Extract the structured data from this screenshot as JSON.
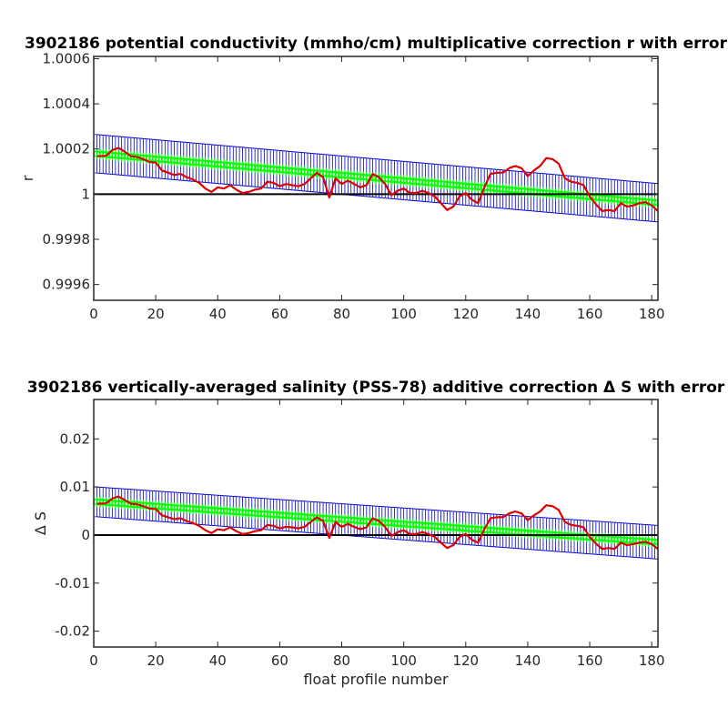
{
  "chart_data": [
    {
      "type": "line",
      "title": "3902186 potential conductivity (mmho/cm) multiplicative correction r with error",
      "xlabel": "",
      "ylabel": "r",
      "xlim": [
        0,
        182
      ],
      "ylim": [
        0.99953,
        1.00061
      ],
      "xticks": [
        0,
        20,
        40,
        60,
        80,
        100,
        120,
        140,
        160,
        180
      ],
      "xtick_labels": [
        "0",
        "20",
        "40",
        "60",
        "80",
        "100",
        "120",
        "140",
        "160",
        "180"
      ],
      "yticks": [
        0.9996,
        0.9998,
        1.0,
        1.0002,
        1.0004,
        1.0006
      ],
      "ytick_labels": [
        "0.9996",
        "0.9998",
        "1",
        "1.0002",
        "1.0004",
        "1.0006"
      ],
      "reference_line": 1.0,
      "series": [
        {
          "role": "fit",
          "color": "#00ff00",
          "marker": "circle",
          "linear": {
            "x": [
              1,
              182
            ],
            "y": [
              1.000179,
              0.999962
            ]
          },
          "errorbar_halfwidth": {
            "x": [
              1,
              182
            ],
            "y": [
              8.5e-05,
              8.5e-05
            ]
          },
          "inner_band_halfwidth": 2.5e-05,
          "errorbar_color": "#0000cc"
        },
        {
          "role": "data",
          "color": "#dd0000",
          "x": [
            1,
            4,
            6,
            8,
            10,
            12,
            14,
            16,
            18,
            20,
            22,
            24,
            26,
            28,
            30,
            32,
            34,
            36,
            38,
            40,
            42,
            44,
            46,
            48,
            50,
            52,
            54,
            56,
            58,
            60,
            62,
            64,
            66,
            68,
            70,
            72,
            74,
            76,
            78,
            80,
            82,
            84,
            86,
            88,
            90,
            92,
            94,
            96,
            98,
            100,
            102,
            104,
            106,
            108,
            110,
            112,
            114,
            116,
            118,
            120,
            122,
            124,
            126,
            128,
            130,
            132,
            134,
            136,
            138,
            140,
            142,
            144,
            146,
            148,
            150,
            152,
            154,
            156,
            158,
            160,
            162,
            164,
            166,
            168,
            170,
            172,
            174,
            176,
            178,
            180,
            182
          ],
          "y": [
            1.000168,
            1.00017,
            1.000195,
            1.000205,
            1.000188,
            1.000168,
            1.000165,
            1.000155,
            1.000142,
            1.00014,
            1.000105,
            1.000095,
            1.000085,
            1.00009,
            1.000075,
            1.000065,
            1.00005,
            1.000025,
            1.00001,
            1.00003,
            1.000025,
            1.00004,
            1.00002,
            1.000005,
            1.00001,
            1.00002,
            1.000025,
            1.000055,
            1.00005,
            1.000035,
            1.000045,
            1.00004,
            1.000035,
            1.000045,
            1.00007,
            1.000095,
            1.000075,
            0.999985,
            1.00007,
            1.000045,
            1.00006,
            1.000045,
            1.00003,
            1.00004,
            1.00009,
            1.000075,
            1.000045,
            0.999995,
            1.000015,
            1.000025,
            1.000005,
            1.000005,
            1.000015,
            1.000005,
            0.99999,
            0.99996,
            0.99993,
            0.999945,
            0.99999,
            1.000005,
            0.999975,
            0.99996,
            1.00003,
            1.00009,
            1.000095,
            1.000095,
            1.000115,
            1.000125,
            1.000115,
            1.00008,
            1.000105,
            1.000125,
            1.00016,
            1.000155,
            1.000135,
            1.00007,
            1.000055,
            1.00005,
            1.00004,
            0.99999,
            0.999955,
            0.999925,
            0.99993,
            0.999925,
            0.99996,
            0.999945,
            0.99995,
            0.99996,
            0.999965,
            0.99995,
            0.999925
          ]
        }
      ]
    },
    {
      "type": "line",
      "title": "3902186 vertically-averaged salinity (PSS-78) additive correction Δ S with error",
      "xlabel": "float profile number",
      "ylabel": "Δ S",
      "xlim": [
        0,
        182
      ],
      "ylim": [
        -0.0233,
        0.0282
      ],
      "xticks": [
        0,
        20,
        40,
        60,
        80,
        100,
        120,
        140,
        160,
        180
      ],
      "xtick_labels": [
        "0",
        "20",
        "40",
        "60",
        "80",
        "100",
        "120",
        "140",
        "160",
        "180"
      ],
      "yticks": [
        -0.02,
        -0.01,
        0,
        0.01,
        0.02
      ],
      "ytick_labels": [
        "-0.02",
        "-0.01",
        "0",
        "0.01",
        "0.02"
      ],
      "reference_line": 0,
      "series": [
        {
          "role": "fit",
          "color": "#00ff00",
          "marker": "circle",
          "linear": {
            "x": [
              1,
              182
            ],
            "y": [
              0.0069,
              -0.0015
            ]
          },
          "errorbar_halfwidth": {
            "x": [
              1,
              182
            ],
            "y": [
              0.0031,
              0.0035
            ]
          },
          "inner_band_halfwidth": 0.0011,
          "errorbar_color": "#0000cc"
        },
        {
          "role": "data",
          "color": "#dd0000",
          "x": [
            1,
            4,
            6,
            8,
            10,
            12,
            14,
            16,
            18,
            20,
            22,
            24,
            26,
            28,
            30,
            32,
            34,
            36,
            38,
            40,
            42,
            44,
            46,
            48,
            50,
            52,
            54,
            56,
            58,
            60,
            62,
            64,
            66,
            68,
            70,
            72,
            74,
            76,
            78,
            80,
            82,
            84,
            86,
            88,
            90,
            92,
            94,
            96,
            98,
            100,
            102,
            104,
            106,
            108,
            110,
            112,
            114,
            116,
            118,
            120,
            122,
            124,
            126,
            128,
            130,
            132,
            134,
            136,
            138,
            140,
            142,
            144,
            146,
            148,
            150,
            152,
            154,
            156,
            158,
            160,
            162,
            164,
            166,
            168,
            170,
            172,
            174,
            176,
            178,
            180,
            182
          ],
          "y": [
            0.0065,
            0.0066,
            0.0076,
            0.008,
            0.0073,
            0.0065,
            0.0064,
            0.006,
            0.0055,
            0.0054,
            0.0041,
            0.0037,
            0.0033,
            0.0035,
            0.0029,
            0.0025,
            0.0019,
            0.001,
            0.0004,
            0.0012,
            0.001,
            0.0016,
            0.0008,
            0.0002,
            0.0004,
            0.0008,
            0.001,
            0.0021,
            0.0019,
            0.0014,
            0.0017,
            0.0016,
            0.0014,
            0.0017,
            0.0027,
            0.0037,
            0.0029,
            -0.0006,
            0.0027,
            0.0017,
            0.0023,
            0.0017,
            0.0012,
            0.0016,
            0.0035,
            0.0029,
            0.0017,
            -0.0002,
            0.0006,
            0.001,
            0.0002,
            0.0002,
            0.0006,
            0.0002,
            -0.0004,
            -0.0016,
            -0.0027,
            -0.0021,
            -0.0004,
            0.0002,
            -0.001,
            -0.0016,
            0.0012,
            0.0035,
            0.0037,
            0.0037,
            0.0045,
            0.0049,
            0.0045,
            0.0031,
            0.0041,
            0.0049,
            0.0062,
            0.006,
            0.0052,
            0.0027,
            0.0021,
            0.0019,
            0.0016,
            -0.0004,
            -0.0018,
            -0.0029,
            -0.0027,
            -0.0029,
            -0.0016,
            -0.0021,
            -0.0019,
            -0.0016,
            -0.0014,
            -0.0019,
            -0.0029
          ]
        }
      ]
    }
  ]
}
